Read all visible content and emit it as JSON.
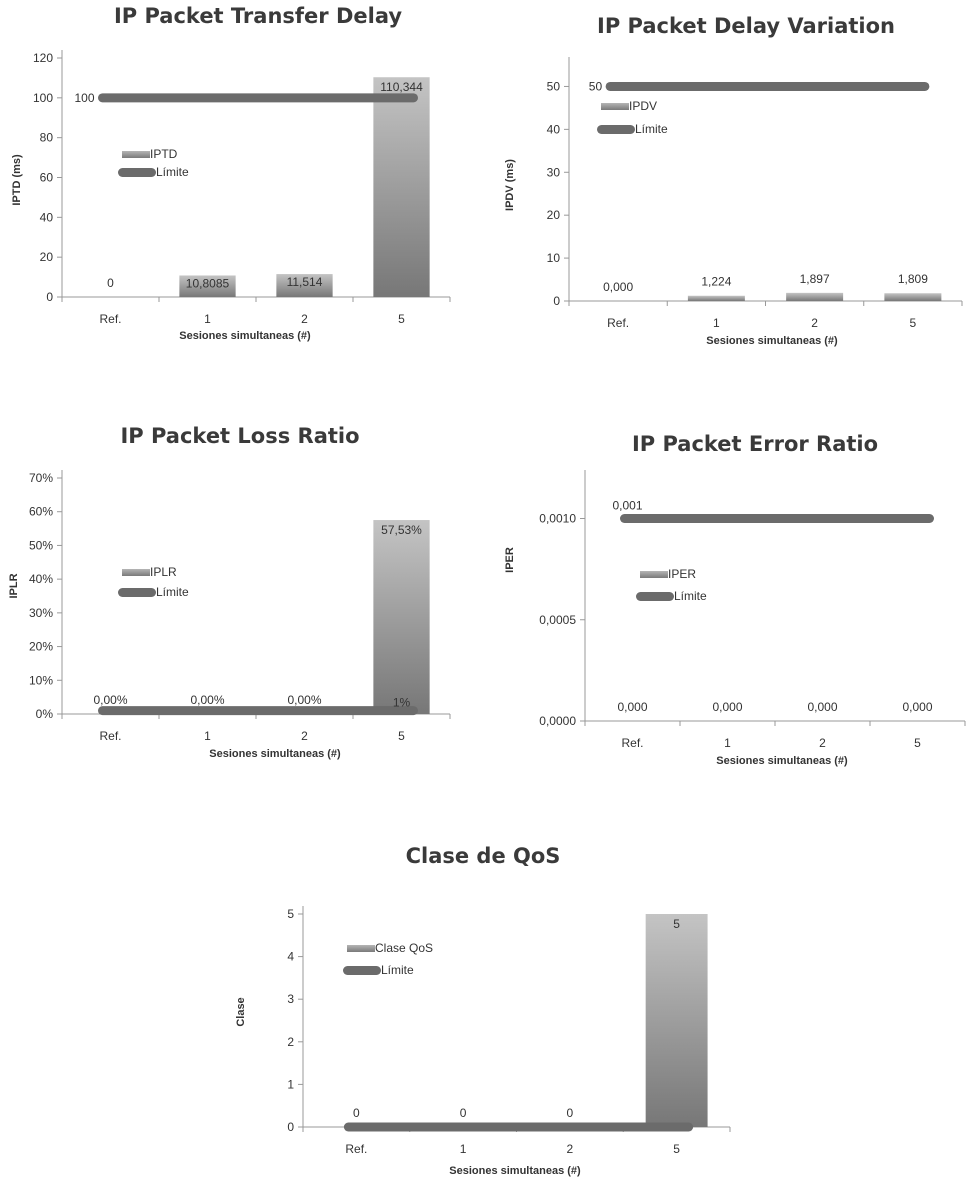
{
  "x_axis_label": "Sesiones simultaneas (#)",
  "chart_data": [
    {
      "type": "bar",
      "title": "IP Packet Transfer Delay",
      "ylabel": "IPTD (ms)",
      "xlabel": "Sesiones simultaneas (#)",
      "categories": [
        "Ref.",
        "1",
        "2",
        "5"
      ],
      "ylim": [
        0,
        120
      ],
      "yticks": [
        0,
        20,
        40,
        60,
        80,
        100,
        120
      ],
      "ytick_labels": [
        "0",
        "20",
        "40",
        "60",
        "80",
        "100",
        "120"
      ],
      "legend_position": "left",
      "series": [
        {
          "name": "IPTD",
          "kind": "bar",
          "values": [
            0,
            10.8085,
            11.514,
            110.344
          ],
          "labels": [
            "0",
            "10,8085",
            "11,514",
            "110,344"
          ]
        },
        {
          "name": "Límite",
          "kind": "line",
          "values": [
            100,
            100,
            100,
            100
          ],
          "labels": [
            "100"
          ]
        }
      ]
    },
    {
      "type": "bar",
      "title": "IP Packet Delay Variation",
      "ylabel": "IPDV (ms)",
      "xlabel": "Sesiones simultaneas (#)",
      "categories": [
        "Ref.",
        "1",
        "2",
        "5"
      ],
      "ylim": [
        0,
        55
      ],
      "yticks": [
        0,
        10,
        20,
        30,
        40,
        50
      ],
      "ytick_labels": [
        "0",
        "10",
        "20",
        "30",
        "40",
        "50"
      ],
      "legend_position": "left",
      "series": [
        {
          "name": "IPDV",
          "kind": "bar",
          "values": [
            0.0,
            1.224,
            1.897,
            1.809
          ],
          "labels": [
            "0,000",
            "1,224",
            "1,897",
            "1,809"
          ]
        },
        {
          "name": "Límite",
          "kind": "line",
          "values": [
            50,
            50,
            50,
            50
          ],
          "labels": [
            "50"
          ]
        }
      ]
    },
    {
      "type": "bar",
      "title": "IP Packet Loss Ratio",
      "ylabel": "IPLR",
      "xlabel": "Sesiones simultaneas (#)",
      "categories": [
        "Ref.",
        "1",
        "2",
        "5"
      ],
      "ylim": [
        0,
        0.7
      ],
      "yticks": [
        0,
        0.1,
        0.2,
        0.3,
        0.4,
        0.5,
        0.6,
        0.7
      ],
      "ytick_labels": [
        "0%",
        "10%",
        "20%",
        "30%",
        "40%",
        "50%",
        "60%",
        "70%"
      ],
      "legend_position": "left",
      "series": [
        {
          "name": "IPLR",
          "kind": "bar",
          "values": [
            0,
            0,
            0,
            0.5753
          ],
          "labels": [
            "0,00%",
            "0,00%",
            "0,00%",
            "57,53%"
          ]
        },
        {
          "name": "Límite",
          "kind": "line",
          "values": [
            0.01,
            0.01,
            0.01,
            0.01
          ],
          "labels": [
            "1%"
          ]
        }
      ]
    },
    {
      "type": "bar",
      "title": "IP Packet Error Ratio",
      "ylabel": "IPER",
      "xlabel": "Sesiones simultaneas (#)",
      "categories": [
        "Ref.",
        "1",
        "2",
        "5"
      ],
      "ylim": [
        0,
        0.0012
      ],
      "yticks": [
        0,
        0.0005,
        0.001
      ],
      "ytick_labels": [
        "0,0000",
        "0,0005",
        "0,0010"
      ],
      "legend_position": "left",
      "series": [
        {
          "name": "IPER",
          "kind": "bar",
          "values": [
            0,
            0,
            0,
            0
          ],
          "labels": [
            "0,000",
            "0,000",
            "0,000",
            "0,000"
          ]
        },
        {
          "name": "Límite",
          "kind": "line",
          "values": [
            0.001,
            0.001,
            0.001,
            0.001
          ],
          "labels": [
            "0,001"
          ]
        }
      ]
    },
    {
      "type": "bar",
      "title": "Clase de QoS",
      "ylabel": "Clase",
      "xlabel": "Sesiones simultaneas (#)",
      "categories": [
        "Ref.",
        "1",
        "2",
        "5"
      ],
      "ylim": [
        0,
        5
      ],
      "yticks": [
        0,
        1,
        2,
        3,
        4,
        5
      ],
      "ytick_labels": [
        "0",
        "1",
        "2",
        "3",
        "4",
        "5"
      ],
      "legend_position": "left",
      "series": [
        {
          "name": "Clase QoS",
          "kind": "bar",
          "values": [
            0,
            0,
            0,
            5
          ],
          "labels": [
            "0",
            "0",
            "0",
            "5"
          ]
        },
        {
          "name": "Límite",
          "kind": "line",
          "values": [
            0,
            0,
            0,
            0
          ],
          "labels": []
        }
      ]
    }
  ]
}
